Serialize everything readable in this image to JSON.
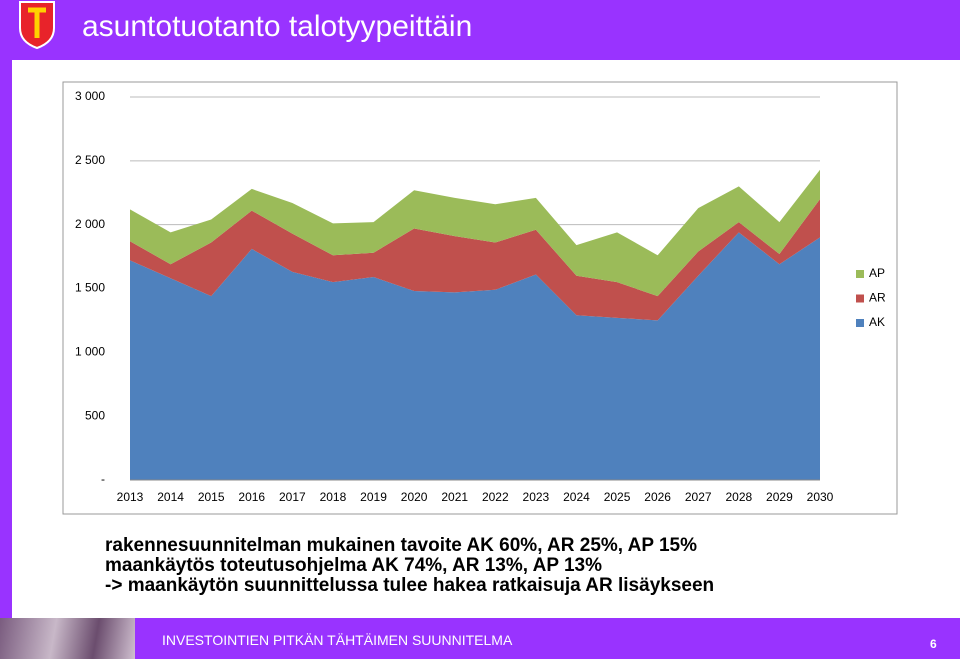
{
  "header": {
    "title": "asuntotuotanto talotyypeittäin"
  },
  "chart_data": {
    "type": "area",
    "stacked": true,
    "categories": [
      "2013",
      "2014",
      "2015",
      "2016",
      "2017",
      "2018",
      "2019",
      "2020",
      "2021",
      "2022",
      "2023",
      "2024",
      "2025",
      "2026",
      "2027",
      "2028",
      "2029",
      "2030"
    ],
    "series": [
      {
        "name": "AK",
        "color": "#4f81bd",
        "values": [
          1720,
          1580,
          1440,
          1810,
          1630,
          1550,
          1590,
          1480,
          1470,
          1490,
          1610,
          1290,
          1270,
          1250,
          1600,
          1940,
          1690,
          1900
        ]
      },
      {
        "name": "AR",
        "color": "#c0504d",
        "values": [
          150,
          110,
          420,
          300,
          300,
          210,
          190,
          490,
          440,
          370,
          350,
          310,
          280,
          190,
          190,
          80,
          80,
          300
        ]
      },
      {
        "name": "AP",
        "color": "#9bbb59",
        "values": [
          250,
          250,
          180,
          170,
          240,
          250,
          240,
          300,
          300,
          300,
          250,
          240,
          390,
          320,
          340,
          280,
          250,
          230
        ]
      }
    ],
    "ylim": [
      0,
      3000
    ],
    "yticks": [
      {
        "value": 0,
        "label": "-"
      },
      500,
      {
        "value": 1000,
        "label": "1 000"
      },
      {
        "value": 1500,
        "label": "1 500"
      },
      {
        "value": 2000,
        "label": "2 000"
      },
      {
        "value": 2500,
        "label": "2 500"
      },
      {
        "value": 3000,
        "label": "3 000"
      }
    ],
    "grid": true
  },
  "body": {
    "lines": [
      "rakennesuunnitelman mukainen tavoite AK 60%, AR 25%, AP 15%",
      "maankäytös toteutusohjelma AK 74%, AR 13%, AP 13%",
      "-> maankäytön suunnittelussa tulee hakea ratkaisuja AR lisäykseen"
    ]
  },
  "footer": {
    "text": "INVESTOINTIEN PITKÄN TÄHTÄIMEN SUUNNITELMA",
    "page": "6"
  }
}
